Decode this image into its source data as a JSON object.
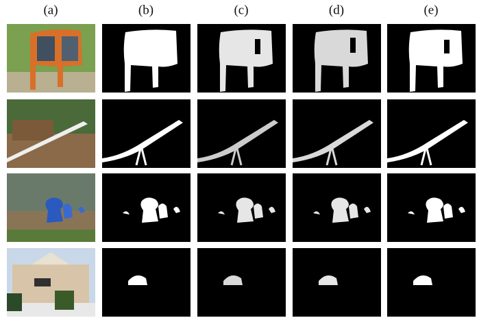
{
  "column_labels": [
    "(a)",
    "(b)",
    "(c)",
    "(d)",
    "(e)"
  ]
}
